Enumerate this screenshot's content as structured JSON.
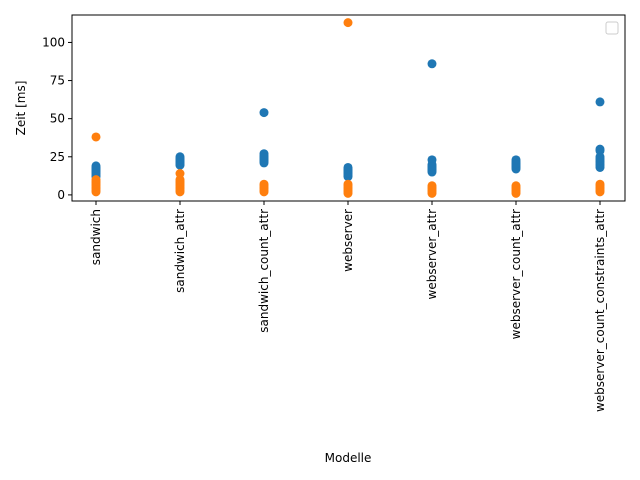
{
  "chart_data": {
    "type": "scatter",
    "title": "",
    "xlabel": "Modelle",
    "ylabel": "Zeit [ms]",
    "categories": [
      "sandwich",
      "sandwich_attr",
      "sandwich_count_attr",
      "webserver",
      "webserver_attr",
      "webserver_count_attr",
      "webserver_count_constraints_attr"
    ],
    "ylim": [
      -4,
      118
    ],
    "yticks": [
      0,
      25,
      50,
      75,
      100
    ],
    "grid": false,
    "legend": {
      "placement": "top-right",
      "entries": []
    },
    "series": [
      {
        "color": "#1f77b4",
        "points": [
          [
            0,
            13
          ],
          [
            0,
            14
          ],
          [
            0,
            15
          ],
          [
            0,
            16
          ],
          [
            0,
            17
          ],
          [
            0,
            18
          ],
          [
            0,
            19
          ],
          [
            0,
            12
          ],
          [
            0,
            15.5
          ],
          [
            0,
            17.5
          ],
          [
            1,
            20
          ],
          [
            1,
            21
          ],
          [
            1,
            22
          ],
          [
            1,
            23
          ],
          [
            1,
            24
          ],
          [
            1,
            25
          ],
          [
            1,
            21.5
          ],
          [
            1,
            23.5
          ],
          [
            1,
            19.5
          ],
          [
            2,
            21
          ],
          [
            2,
            22
          ],
          [
            2,
            23
          ],
          [
            2,
            24
          ],
          [
            2,
            25
          ],
          [
            2,
            26
          ],
          [
            2,
            27
          ],
          [
            2,
            22.5
          ],
          [
            2,
            24.5
          ],
          [
            2,
            54
          ],
          [
            3,
            12
          ],
          [
            3,
            13
          ],
          [
            3,
            14
          ],
          [
            3,
            15
          ],
          [
            3,
            16
          ],
          [
            3,
            17
          ],
          [
            3,
            18
          ],
          [
            3,
            14.5
          ],
          [
            3,
            16.5
          ],
          [
            4,
            15
          ],
          [
            4,
            16
          ],
          [
            4,
            17
          ],
          [
            4,
            18
          ],
          [
            4,
            19
          ],
          [
            4,
            20
          ],
          [
            4,
            23
          ],
          [
            4,
            16.5
          ],
          [
            4,
            18.5
          ],
          [
            4,
            86
          ],
          [
            5,
            17
          ],
          [
            5,
            18
          ],
          [
            5,
            19
          ],
          [
            5,
            20
          ],
          [
            5,
            21
          ],
          [
            5,
            22
          ],
          [
            5,
            23
          ],
          [
            5,
            18.5
          ],
          [
            5,
            20.5
          ],
          [
            6,
            18
          ],
          [
            6,
            19
          ],
          [
            6,
            20
          ],
          [
            6,
            21
          ],
          [
            6,
            22
          ],
          [
            6,
            23
          ],
          [
            6,
            24
          ],
          [
            6,
            25
          ],
          [
            6,
            29
          ],
          [
            6,
            30
          ],
          [
            6,
            61
          ]
        ]
      },
      {
        "color": "#ff7f0e",
        "points": [
          [
            0,
            2
          ],
          [
            0,
            3
          ],
          [
            0,
            4
          ],
          [
            0,
            5
          ],
          [
            0,
            6
          ],
          [
            0,
            7
          ],
          [
            0,
            8
          ],
          [
            0,
            9
          ],
          [
            0,
            10
          ],
          [
            0,
            38
          ],
          [
            1,
            2
          ],
          [
            1,
            3
          ],
          [
            1,
            4
          ],
          [
            1,
            5
          ],
          [
            1,
            6
          ],
          [
            1,
            7
          ],
          [
            1,
            8
          ],
          [
            1,
            9
          ],
          [
            1,
            10
          ],
          [
            1,
            14
          ],
          [
            2,
            2
          ],
          [
            2,
            3
          ],
          [
            2,
            4
          ],
          [
            2,
            5
          ],
          [
            2,
            6
          ],
          [
            2,
            7
          ],
          [
            3,
            1
          ],
          [
            3,
            2
          ],
          [
            3,
            3
          ],
          [
            3,
            4
          ],
          [
            3,
            5
          ],
          [
            3,
            6
          ],
          [
            3,
            7
          ],
          [
            3,
            113
          ],
          [
            4,
            1
          ],
          [
            4,
            2
          ],
          [
            4,
            3
          ],
          [
            4,
            4
          ],
          [
            4,
            5
          ],
          [
            4,
            6
          ],
          [
            5,
            1
          ],
          [
            5,
            2
          ],
          [
            5,
            3
          ],
          [
            5,
            4
          ],
          [
            5,
            5
          ],
          [
            5,
            6
          ],
          [
            6,
            2
          ],
          [
            6,
            3
          ],
          [
            6,
            4
          ],
          [
            6,
            5
          ],
          [
            6,
            6
          ],
          [
            6,
            7
          ]
        ]
      }
    ]
  }
}
